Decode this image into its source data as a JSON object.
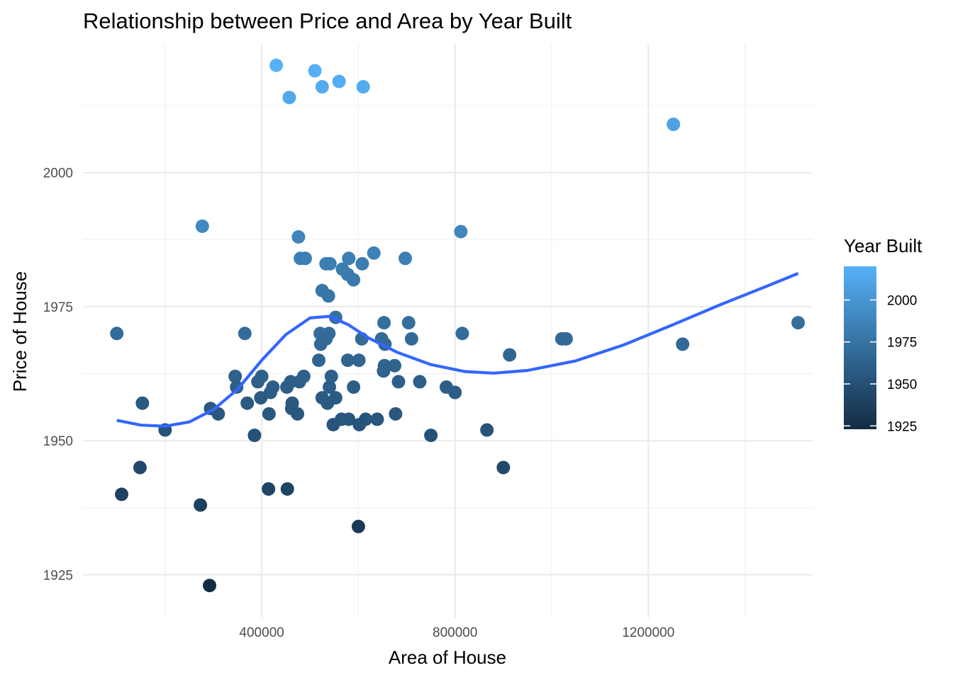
{
  "chart_data": {
    "type": "scatter",
    "title": "Relationship between Price and Area by Year Built",
    "xlabel": "Area of House",
    "ylabel": "Price of House",
    "xlim": [
      30000,
      1540000
    ],
    "ylim": [
      1917,
      2024
    ],
    "x_ticks": [
      400000,
      800000,
      1200000
    ],
    "x_tick_labels": [
      "400000",
      "800000",
      "1200000"
    ],
    "y_ticks": [
      1925,
      1950,
      1975,
      2000
    ],
    "y_tick_labels": [
      "1925",
      "1950",
      "1975",
      "2000"
    ],
    "grid": true,
    "legend": {
      "title": "Year Built",
      "position": "right",
      "type": "colorbar",
      "range": [
        1923,
        2020
      ],
      "ticks": [
        1925,
        1950,
        1975,
        2000
      ],
      "tick_labels": [
        "1925",
        "1950",
        "1975",
        "2000"
      ],
      "color_low": "#132b43",
      "color_high": "#56b1f7"
    },
    "series": [
      {
        "type": "points",
        "points": [
          [
            430000,
            2020
          ],
          [
            510000,
            2019
          ],
          [
            560000,
            2017
          ],
          [
            525000,
            2016
          ],
          [
            610000,
            2016
          ],
          [
            457000,
            2014
          ],
          [
            1252000,
            2009
          ],
          [
            277000,
            1990
          ],
          [
            476000,
            1988
          ],
          [
            812000,
            1989
          ],
          [
            632000,
            1985
          ],
          [
            480000,
            1984
          ],
          [
            490000,
            1984
          ],
          [
            580000,
            1984
          ],
          [
            697000,
            1984
          ],
          [
            533000,
            1983
          ],
          [
            541000,
            1983
          ],
          [
            608000,
            1983
          ],
          [
            567000,
            1982
          ],
          [
            578000,
            1981
          ],
          [
            590000,
            1980
          ],
          [
            525000,
            1978
          ],
          [
            538000,
            1977
          ],
          [
            100000,
            1970
          ],
          [
            365000,
            1970
          ],
          [
            521000,
            1970
          ],
          [
            539000,
            1970
          ],
          [
            815000,
            1970
          ],
          [
            1510000,
            1972
          ],
          [
            553000,
            1973
          ],
          [
            653000,
            1972
          ],
          [
            704000,
            1972
          ],
          [
            533000,
            1969
          ],
          [
            607000,
            1969
          ],
          [
            648000,
            1969
          ],
          [
            710000,
            1969
          ],
          [
            1021000,
            1969
          ],
          [
            1030000,
            1969
          ],
          [
            522000,
            1968
          ],
          [
            655000,
            1968
          ],
          [
            1271000,
            1968
          ],
          [
            913000,
            1966
          ],
          [
            518000,
            1965
          ],
          [
            578000,
            1965
          ],
          [
            601000,
            1965
          ],
          [
            654000,
            1964
          ],
          [
            675000,
            1964
          ],
          [
            652000,
            1963
          ],
          [
            345000,
            1962
          ],
          [
            400000,
            1962
          ],
          [
            487000,
            1962
          ],
          [
            544000,
            1962
          ],
          [
            392000,
            1961
          ],
          [
            460000,
            1961
          ],
          [
            478000,
            1961
          ],
          [
            683000,
            1961
          ],
          [
            727000,
            1961
          ],
          [
            348000,
            1960
          ],
          [
            423000,
            1960
          ],
          [
            452000,
            1960
          ],
          [
            540000,
            1960
          ],
          [
            590000,
            1960
          ],
          [
            782000,
            1960
          ],
          [
            418000,
            1959
          ],
          [
            800000,
            1959
          ],
          [
            398000,
            1958
          ],
          [
            525000,
            1958
          ],
          [
            553000,
            1958
          ],
          [
            153000,
            1957
          ],
          [
            370000,
            1957
          ],
          [
            463000,
            1957
          ],
          [
            536000,
            1957
          ],
          [
            294000,
            1956
          ],
          [
            462000,
            1956
          ],
          [
            310000,
            1955
          ],
          [
            415000,
            1955
          ],
          [
            474000,
            1955
          ],
          [
            677000,
            1955
          ],
          [
            565000,
            1954
          ],
          [
            580000,
            1954
          ],
          [
            615000,
            1954
          ],
          [
            639000,
            1954
          ],
          [
            548000,
            1953
          ],
          [
            602000,
            1953
          ],
          [
            200000,
            1952
          ],
          [
            866000,
            1952
          ],
          [
            385000,
            1951
          ],
          [
            750000,
            1951
          ],
          [
            148000,
            1945
          ],
          [
            900000,
            1945
          ],
          [
            414000,
            1941
          ],
          [
            453000,
            1941
          ],
          [
            110000,
            1940
          ],
          [
            273000,
            1938
          ],
          [
            600000,
            1934
          ],
          [
            292000,
            1923
          ]
        ]
      },
      {
        "type": "smooth",
        "color": "#3366ff",
        "points": [
          [
            100000,
            1953.8
          ],
          [
            150000,
            1952.9
          ],
          [
            200000,
            1952.7
          ],
          [
            250000,
            1953.5
          ],
          [
            300000,
            1955.8
          ],
          [
            350000,
            1959.6
          ],
          [
            400000,
            1965
          ],
          [
            450000,
            1969.8
          ],
          [
            500000,
            1972.9
          ],
          [
            540000,
            1973.2
          ],
          [
            580000,
            1971.6
          ],
          [
            620000,
            1969.2
          ],
          [
            680000,
            1966.5
          ],
          [
            750000,
            1964.2
          ],
          [
            820000,
            1962.9
          ],
          [
            880000,
            1962.6
          ],
          [
            950000,
            1963.1
          ],
          [
            1050000,
            1964.9
          ],
          [
            1150000,
            1967.9
          ],
          [
            1250000,
            1971.6
          ],
          [
            1350000,
            1975.4
          ],
          [
            1450000,
            1979
          ],
          [
            1510000,
            1981.2
          ]
        ]
      }
    ]
  }
}
